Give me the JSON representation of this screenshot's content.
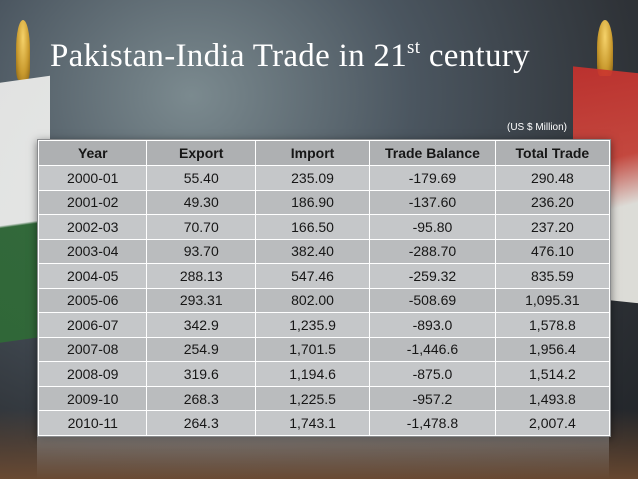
{
  "slide": {
    "title_main": "Pakistan-India Trade in 21",
    "title_sup": "st",
    "title_end": " century",
    "unit_note": "(US $ Million)"
  },
  "table": {
    "headers": [
      "Year",
      "Export",
      "Import",
      "Trade Balance",
      "Total Trade"
    ],
    "rows": [
      [
        "2000-01",
        "55.40",
        "235.09",
        "-179.69",
        "290.48"
      ],
      [
        "2001-02",
        "49.30",
        "186.90",
        "-137.60",
        "236.20"
      ],
      [
        "2002-03",
        "70.70",
        "166.50",
        "-95.80",
        "237.20"
      ],
      [
        "2003-04",
        "93.70",
        "382.40",
        "-288.70",
        "476.10"
      ],
      [
        "2004-05",
        "288.13",
        "547.46",
        "-259.32",
        "835.59"
      ],
      [
        "2005-06",
        "293.31",
        "802.00",
        "-508.69",
        "1,095.31"
      ],
      [
        "2006-07",
        "342.9",
        "1,235.9",
        "-893.0",
        "1,578.8"
      ],
      [
        "2007-08",
        "254.9",
        "1,701.5",
        "-1,446.6",
        "1,956.4"
      ],
      [
        "2008-09",
        "319.6",
        "1,194.6",
        "-875.0",
        "1,514.2"
      ],
      [
        "2009-10",
        "268.3",
        "1,225.5",
        "-957.2",
        "1,493.8"
      ],
      [
        "2010-11",
        "264.3",
        "1,743.1",
        "-1,478.8",
        "2,007.4"
      ]
    ]
  }
}
